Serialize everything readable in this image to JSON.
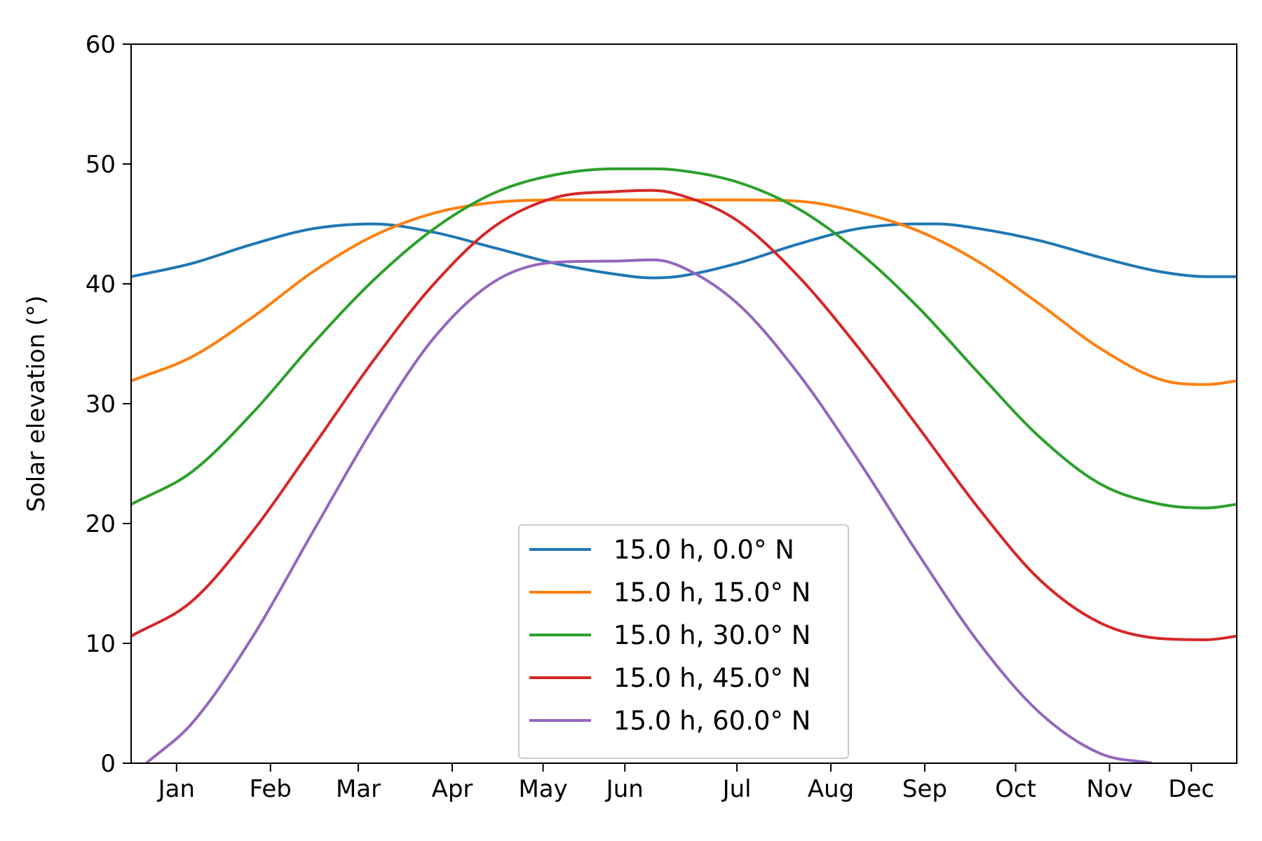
{
  "chart_data": {
    "type": "line",
    "title": "",
    "xlabel": "",
    "ylabel": "Solar elevation (°)",
    "xlim": [
      0,
      365
    ],
    "ylim": [
      0,
      60
    ],
    "grid": false,
    "legend_position": "lower center",
    "x_tick_positions": [
      15,
      46,
      75,
      106,
      136,
      163,
      200,
      231,
      262,
      292,
      323,
      350
    ],
    "x_tick_labels": [
      "Jan",
      "Feb",
      "Mar",
      "Apr",
      "May",
      "Jun",
      "Jul",
      "Aug",
      "Sep",
      "Oct",
      "Nov",
      "Dec"
    ],
    "y_ticks": [
      0,
      10,
      20,
      30,
      40,
      50,
      60
    ],
    "series": [
      {
        "name": "15.0 h, 0.0° N",
        "color": "#1f77b4",
        "x": [
          0,
          20,
          40,
          60,
          80,
          100,
          120,
          140,
          160,
          172,
          180,
          200,
          220,
          240,
          260,
          266,
          280,
          300,
          320,
          340,
          355,
          365
        ],
        "y": [
          40.6,
          41.7,
          43.3,
          44.6,
          45.0,
          44.3,
          43.0,
          41.7,
          40.8,
          40.5,
          40.6,
          41.7,
          43.3,
          44.6,
          45.0,
          45.0,
          44.6,
          43.6,
          42.2,
          41.0,
          40.6,
          40.6
        ]
      },
      {
        "name": "15.0 h, 15.0° N",
        "color": "#ff7f0e",
        "x": [
          0,
          20,
          40,
          60,
          80,
          100,
          120,
          140,
          160,
          180,
          200,
          220,
          240,
          260,
          280,
          300,
          320,
          340,
          355,
          365
        ],
        "y": [
          31.9,
          33.9,
          37.2,
          41.0,
          44.0,
          45.9,
          46.8,
          47.0,
          47.0,
          47.0,
          47.0,
          46.9,
          46.0,
          44.4,
          41.8,
          38.3,
          34.6,
          32.0,
          31.6,
          31.9
        ]
      },
      {
        "name": "15.0 h, 30.0° N",
        "color": "#2ca02c",
        "x": [
          0,
          20,
          40,
          60,
          80,
          100,
          120,
          140,
          160,
          172,
          180,
          200,
          220,
          240,
          260,
          280,
          300,
          320,
          340,
          355,
          365
        ],
        "y": [
          21.6,
          24.3,
          29.2,
          35.0,
          40.3,
          44.6,
          47.6,
          49.1,
          49.6,
          49.6,
          49.5,
          48.5,
          46.3,
          42.7,
          38.0,
          32.5,
          27.2,
          23.3,
          21.6,
          21.3,
          21.6
        ]
      },
      {
        "name": "15.0 h, 45.0° N",
        "color": "#d62728",
        "x": [
          0,
          20,
          40,
          60,
          80,
          100,
          120,
          140,
          160,
          172,
          180,
          200,
          220,
          240,
          260,
          280,
          300,
          320,
          340,
          355,
          365
        ],
        "y": [
          10.6,
          13.5,
          19.3,
          26.4,
          33.6,
          40.0,
          44.8,
          47.2,
          47.7,
          47.8,
          47.5,
          45.3,
          40.7,
          34.7,
          28.0,
          21.2,
          15.3,
          11.7,
          10.4,
          10.3,
          10.6
        ]
      },
      {
        "name": "15.0 h, 60.0° N",
        "color": "#9467bd",
        "x": [
          5,
          20,
          40,
          60,
          80,
          100,
          120,
          140,
          160,
          172,
          180,
          200,
          220,
          240,
          260,
          280,
          300,
          320,
          337
        ],
        "y": [
          0,
          3.3,
          10.5,
          19.3,
          28.0,
          35.5,
          40.2,
          41.8,
          41.9,
          42.0,
          41.6,
          38.4,
          32.6,
          25.3,
          17.4,
          10.0,
          4.2,
          0.8,
          0
        ]
      }
    ]
  }
}
